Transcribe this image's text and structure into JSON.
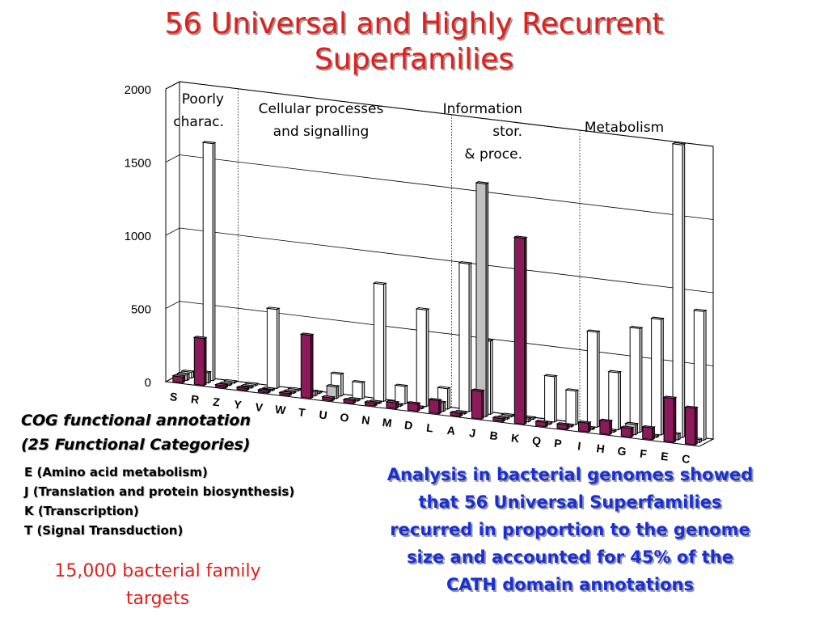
{
  "title": {
    "line1": "56 Universal and Highly Recurrent",
    "line2": "Superfamilies"
  },
  "left_text": {
    "heading_line1": "COG functional annotation",
    "heading_line2": "(25 Functional Categories)",
    "annotations": [
      "E (Amino acid metabolism)",
      "J (Translation and protein biosynthesis)",
      "K (Transcription)",
      "T (Signal Transduction)"
    ],
    "targets_line1": "15,000 bacterial family",
    "targets_line2": "targets"
  },
  "analysis_text": {
    "lines": [
      "Analysis in bacterial genomes showed",
      "that 56 Universal Superfamilies",
      "recurred in proportion to the genome",
      "size and accounted for 45% of the",
      "CATH domain annotations"
    ]
  },
  "colors": {
    "title": "#e0201c",
    "analysis": "#1a2fd4",
    "series_front": "#8b1a5a",
    "series_middle": "#c0c0c0",
    "series_back": "#ffffff"
  },
  "chart_data": {
    "type": "bar",
    "variant": "3d-grouped",
    "title": "",
    "xlabel": "",
    "ylabel": "",
    "ylim": [
      0,
      2000
    ],
    "yticks": [
      0,
      500,
      1000,
      1500,
      2000
    ],
    "grid": true,
    "categories": [
      "S",
      "R",
      "Z",
      "Y",
      "V",
      "W",
      "T",
      "U",
      "O",
      "N",
      "M",
      "D",
      "L",
      "A",
      "J",
      "B",
      "K",
      "Q",
      "P",
      "I",
      "H",
      "G",
      "F",
      "E",
      "C"
    ],
    "series": [
      {
        "values": [
          40,
          320,
          15,
          15,
          15,
          15,
          430,
          20,
          20,
          20,
          40,
          50,
          90,
          20,
          190,
          20,
          1270,
          30,
          30,
          60,
          90,
          60,
          80,
          300,
          250
        ]
      },
      {
        "values": [
          40,
          70,
          10,
          10,
          10,
          10,
          30,
          80,
          10,
          10,
          10,
          10,
          60,
          10,
          1590,
          10,
          20,
          10,
          10,
          10,
          10,
          70,
          10,
          40,
          20
        ]
      },
      {
        "values": [
          40,
          1620,
          10,
          10,
          540,
          10,
          10,
          150,
          110,
          800,
          120,
          660,
          140,
          1010,
          500,
          10,
          10,
          310,
          230,
          650,
          390,
          710,
          790,
          2000,
          880
        ]
      }
    ],
    "section_labels": [
      {
        "line1": "Poorly",
        "line2": "charac.",
        "line3": ""
      },
      {
        "line1": "Cellular processes",
        "line2": "and signalling",
        "line3": ""
      },
      {
        "line1": "Information",
        "line2": "stor.",
        "line3": "& proce."
      },
      {
        "line1": "Metabolism",
        "line2": "",
        "line3": ""
      }
    ]
  }
}
